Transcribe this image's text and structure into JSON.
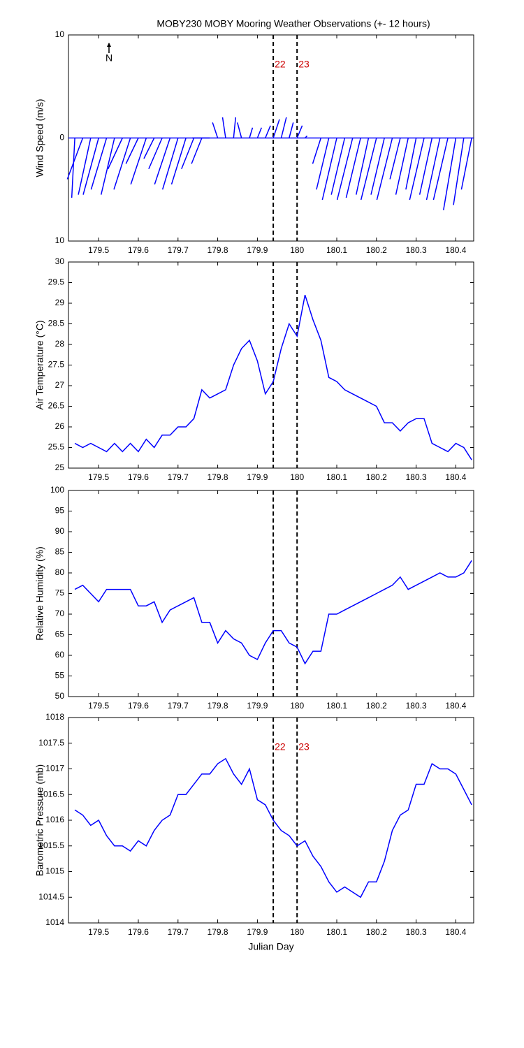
{
  "chart_data": [
    {
      "type": "wind",
      "title": "MOBY230 MOBY Mooring Weather Observations (+- 12 hours)",
      "ylabel": "Wind Speed (m/s)",
      "north_label": "N",
      "x": [
        179.44,
        179.46,
        179.48,
        179.5,
        179.52,
        179.54,
        179.56,
        179.58,
        179.6,
        179.62,
        179.64,
        179.66,
        179.68,
        179.7,
        179.72,
        179.74,
        179.76,
        179.78,
        179.8,
        179.82,
        179.84,
        179.86,
        179.88,
        179.9,
        179.92,
        179.94,
        179.96,
        179.98,
        180.0,
        180.02,
        180.04,
        180.06,
        180.08,
        180.1,
        180.12,
        180.14,
        180.16,
        180.18,
        180.2,
        180.22,
        180.24,
        180.26,
        180.28,
        180.3,
        180.32,
        180.34,
        180.36,
        180.38,
        180.4,
        180.42,
        180.44
      ],
      "u": [
        -0.3,
        -1.5,
        -1.2,
        -1.5,
        -1.5,
        -1.3,
        -1.4,
        -1.6,
        -1.2,
        -1.5,
        -1.0,
        -1.3,
        -1.5,
        -1.5,
        -1.4,
        -1.2,
        -1.0,
        -1.7,
        -0.5,
        -0.3,
        0.2,
        -0.4,
        0.3,
        0.4,
        0.5,
        0.6,
        0.5,
        0.4,
        0.5,
        0.2,
        0.0,
        -0.8,
        -1.2,
        -1.4,
        -1.3,
        -1.5,
        -1.4,
        -1.2,
        -1.5,
        -1.3,
        -1.5,
        -1.0,
        -1.2,
        -1.0,
        -1.4,
        -1.2,
        -1.3,
        -1.4,
        -1.2,
        -1.0,
        -1.0
      ],
      "v": [
        -5.8,
        -4,
        -5.5,
        -5.5,
        -5,
        -5.5,
        -3,
        -5,
        -2.5,
        -4.5,
        -2,
        -3,
        -4.5,
        -5,
        -4.5,
        -3,
        -2.5,
        0,
        1.5,
        2,
        2,
        1.5,
        1,
        1,
        1.2,
        1.8,
        2,
        1.5,
        1.2,
        0.2,
        0,
        -2.5,
        -5,
        -6,
        -5.5,
        -6,
        -5.8,
        -5.5,
        -6,
        -5.5,
        -6,
        -4,
        -5.5,
        -5,
        -6,
        -5.5,
        -6,
        -6,
        -7,
        -6.5,
        -5
      ],
      "color": "#0000ff",
      "xlim": [
        179.424,
        180.445
      ],
      "xticks": [
        179.5,
        179.6,
        179.7,
        179.8,
        179.9,
        180,
        180.1,
        180.2,
        180.3,
        180.4
      ],
      "ylim": [
        -10,
        10
      ],
      "yticks": [
        {
          "value": -10,
          "label": "10"
        },
        0,
        10
      ],
      "vlines": [
        179.94,
        180.0
      ],
      "vline_labels": [
        "22",
        "23"
      ],
      "vline_label_color": "#cc0000"
    },
    {
      "type": "line",
      "ylabel": "Air Temperature (°C)",
      "x": [
        179.44,
        179.46,
        179.48,
        179.5,
        179.52,
        179.54,
        179.56,
        179.58,
        179.6,
        179.62,
        179.64,
        179.66,
        179.68,
        179.7,
        179.72,
        179.74,
        179.76,
        179.78,
        179.8,
        179.82,
        179.84,
        179.86,
        179.88,
        179.9,
        179.92,
        179.94,
        179.96,
        179.98,
        180.0,
        180.02,
        180.04,
        180.06,
        180.08,
        180.1,
        180.12,
        180.14,
        180.16,
        180.18,
        180.2,
        180.22,
        180.24,
        180.26,
        180.28,
        180.3,
        180.32,
        180.34,
        180.36,
        180.38,
        180.4,
        180.42,
        180.44
      ],
      "values": [
        25.6,
        25.5,
        25.6,
        25.5,
        25.4,
        25.6,
        25.4,
        25.6,
        25.4,
        25.7,
        25.5,
        25.8,
        25.8,
        26.0,
        26.0,
        26.2,
        26.9,
        26.7,
        26.8,
        26.9,
        27.5,
        27.9,
        28.1,
        27.6,
        26.8,
        27.1,
        27.9,
        28.5,
        28.2,
        29.2,
        28.6,
        28.1,
        27.2,
        27.1,
        26.9,
        26.8,
        26.7,
        26.6,
        26.5,
        26.1,
        26.1,
        25.9,
        26.1,
        26.2,
        26.2,
        25.6,
        25.5,
        25.4,
        25.6,
        25.5,
        25.2
      ],
      "color": "#0000ff",
      "xlim": [
        179.424,
        180.445
      ],
      "xticks": [
        179.5,
        179.6,
        179.7,
        179.8,
        179.9,
        180,
        180.1,
        180.2,
        180.3,
        180.4
      ],
      "ylim": [
        25,
        30
      ],
      "yticks": [
        25,
        25.5,
        26,
        26.5,
        27,
        27.5,
        28,
        28.5,
        29,
        29.5,
        30
      ],
      "vlines": [
        179.94,
        180.0
      ]
    },
    {
      "type": "line",
      "ylabel": "Relative Humidity (%)",
      "x": [
        179.44,
        179.46,
        179.48,
        179.5,
        179.52,
        179.54,
        179.56,
        179.58,
        179.6,
        179.62,
        179.64,
        179.66,
        179.68,
        179.7,
        179.72,
        179.74,
        179.76,
        179.78,
        179.8,
        179.82,
        179.84,
        179.86,
        179.88,
        179.9,
        179.92,
        179.94,
        179.96,
        179.98,
        180.0,
        180.02,
        180.04,
        180.06,
        180.08,
        180.1,
        180.12,
        180.14,
        180.16,
        180.18,
        180.2,
        180.22,
        180.24,
        180.26,
        180.28,
        180.3,
        180.32,
        180.34,
        180.36,
        180.38,
        180.4,
        180.42,
        180.44
      ],
      "values": [
        76,
        77,
        75,
        73,
        76,
        76,
        76,
        76,
        72,
        72,
        73,
        68,
        71,
        72,
        73,
        74,
        68,
        68,
        63,
        66,
        64,
        63,
        60,
        59,
        63,
        66,
        66,
        63,
        62,
        58,
        61,
        61,
        70,
        70,
        71,
        72,
        73,
        74,
        75,
        76,
        77,
        79,
        76,
        77,
        78,
        79,
        80,
        79,
        79,
        80,
        83
      ],
      "color": "#0000ff",
      "xlim": [
        179.424,
        180.445
      ],
      "xticks": [
        179.5,
        179.6,
        179.7,
        179.8,
        179.9,
        180,
        180.1,
        180.2,
        180.3,
        180.4
      ],
      "ylim": [
        50,
        100
      ],
      "yticks": [
        50,
        55,
        60,
        65,
        70,
        75,
        80,
        85,
        90,
        95,
        100
      ],
      "vlines": [
        179.94,
        180.0
      ]
    },
    {
      "type": "line",
      "ylabel": "Barometric Pressure (mb)",
      "xlabel": "Julian Day",
      "x": [
        179.44,
        179.46,
        179.48,
        179.5,
        179.52,
        179.54,
        179.56,
        179.58,
        179.6,
        179.62,
        179.64,
        179.66,
        179.68,
        179.7,
        179.72,
        179.74,
        179.76,
        179.78,
        179.8,
        179.82,
        179.84,
        179.86,
        179.88,
        179.9,
        179.92,
        179.94,
        179.96,
        179.98,
        180.0,
        180.02,
        180.04,
        180.06,
        180.08,
        180.1,
        180.12,
        180.14,
        180.16,
        180.18,
        180.2,
        180.22,
        180.24,
        180.26,
        180.28,
        180.3,
        180.32,
        180.34,
        180.36,
        180.38,
        180.4,
        180.42,
        180.44
      ],
      "values": [
        1016.2,
        1016.1,
        1015.9,
        1016.0,
        1015.7,
        1015.5,
        1015.5,
        1015.4,
        1015.6,
        1015.5,
        1015.8,
        1016.0,
        1016.1,
        1016.5,
        1016.5,
        1016.7,
        1016.9,
        1016.9,
        1017.1,
        1017.2,
        1016.9,
        1016.7,
        1017.0,
        1016.4,
        1016.3,
        1016.0,
        1015.8,
        1015.7,
        1015.5,
        1015.6,
        1015.3,
        1015.1,
        1014.8,
        1014.6,
        1014.7,
        1014.6,
        1014.5,
        1014.8,
        1014.8,
        1015.2,
        1015.8,
        1016.1,
        1016.2,
        1016.7,
        1016.7,
        1017.1,
        1017.0,
        1017.0,
        1016.9,
        1016.6,
        1016.3
      ],
      "color": "#0000ff",
      "xlim": [
        179.424,
        180.445
      ],
      "xticks": [
        179.5,
        179.6,
        179.7,
        179.8,
        179.9,
        180,
        180.1,
        180.2,
        180.3,
        180.4
      ],
      "ylim": [
        1014,
        1018
      ],
      "yticks": [
        1014,
        1014.5,
        1015,
        1015.5,
        1016,
        1016.5,
        1017,
        1017.5,
        1018
      ],
      "vlines": [
        179.94,
        180.0
      ],
      "vline_labels": [
        "22",
        "23"
      ],
      "vline_label_color": "#cc0000"
    }
  ]
}
